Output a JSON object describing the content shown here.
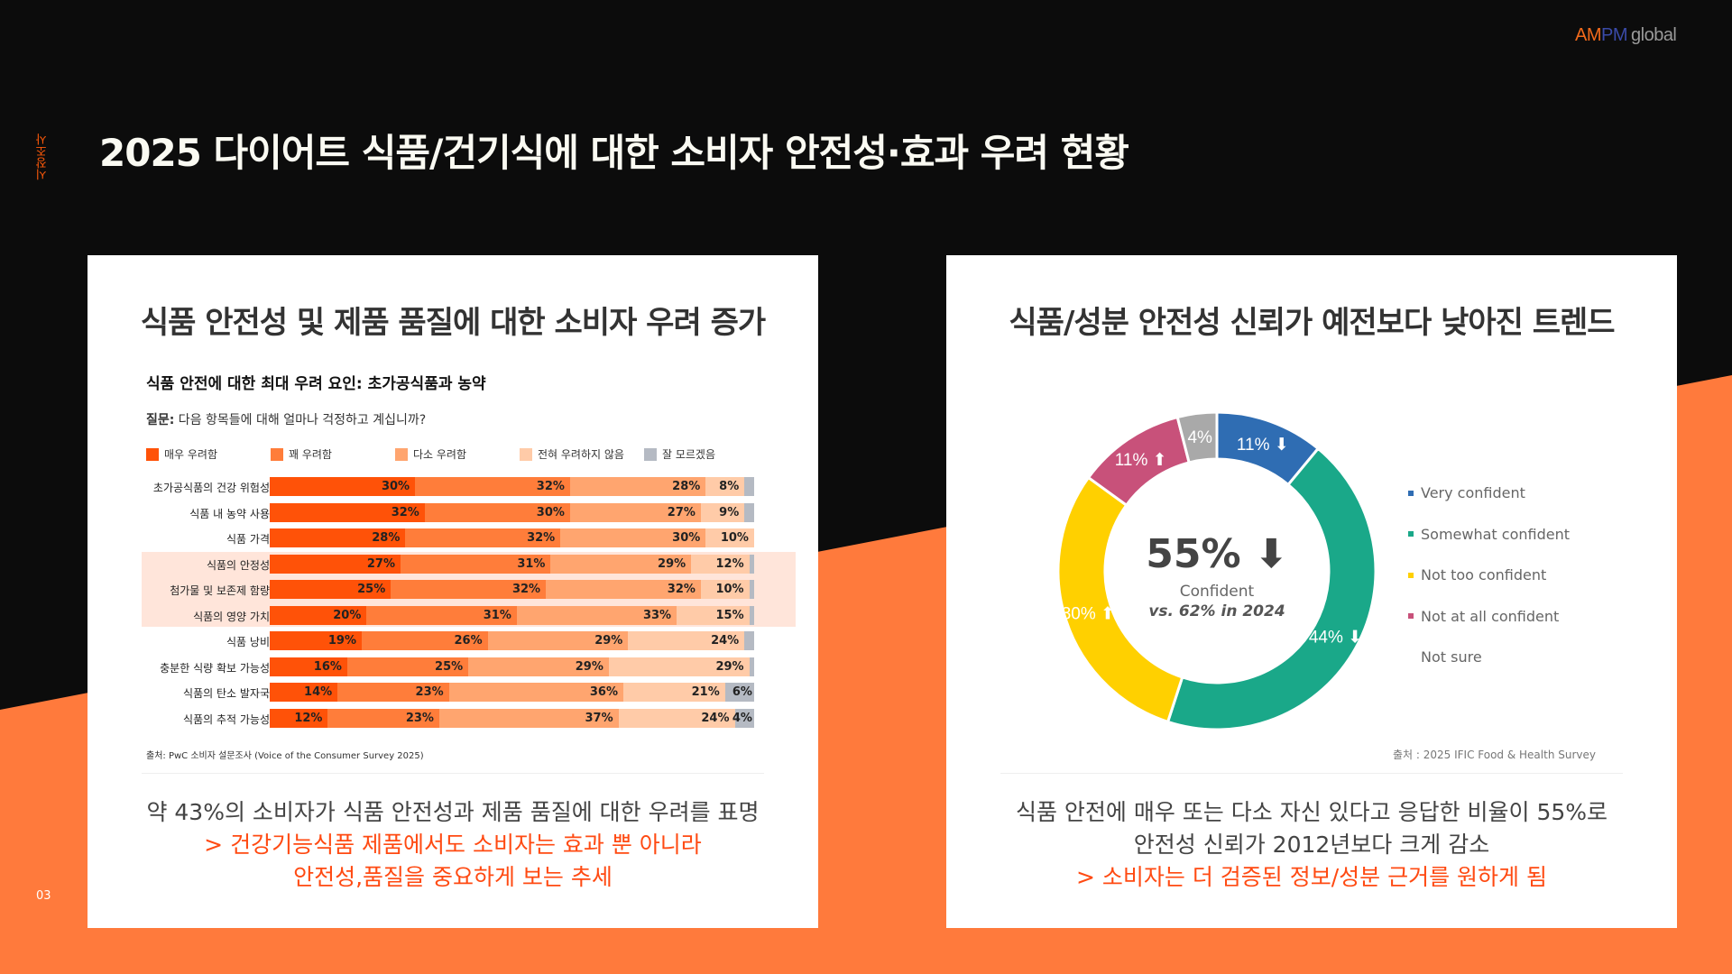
{
  "header": {
    "logo": {
      "am": "AM",
      "pm": "PM",
      "global": "global"
    },
    "section": "시장조사",
    "title": "2025 다이어트 식품/건기식에 대한 소비자 안전성·효과 우려 현황",
    "page": "03"
  },
  "left": {
    "title": "식품 안전성 및 제품 품질에 대한 소비자 우려 증가",
    "subtitle": "식품 안전에 대한 최대 우려 요인: 초가공식품과 농약",
    "question_label": "질문:",
    "question": " 다음 항목들에 대해 얼마나 걱정하고 계십니까?",
    "source": "출처: PwC 소비자 설문조사 (Voice of the Consumer Survey 2025)",
    "bottom": [
      "약 43%의 소비자가 식품 안전성과 제품 품질에 대한 우려를 표명",
      "> 건강기능식품 제품에서도 소비자는 효과 뿐 아니라",
      "안전성,품질을 중요하게 보는 추세"
    ]
  },
  "right": {
    "title": "식품/성분 안전성 신뢰가 예전보다 낮아진 트렌드",
    "center_value": "55%",
    "center_label": "Confident",
    "center_compare": "vs. 62% in 2024",
    "source": "출처 : 2025 IFIC Food & Health Survey",
    "bottom": [
      "식품 안전에 매우 또는 다소 자신 있다고 응답한 비율이 55%로",
      "안전성 신뢰가 2012년보다 크게 감소",
      "> 소비자는 더 검증된 정보/성분 근거를 원하게 됨"
    ]
  },
  "chart_data": [
    {
      "type": "bar",
      "stacked": true,
      "orientation": "horizontal",
      "legend": [
        "매우 우려함",
        "꽤 우려함",
        "다소 우려함",
        "전혀 우려하지 않음",
        "잘 모르겠음"
      ],
      "colors": [
        "#ff5208",
        "#ff7d3a",
        "#ffa56f",
        "#ffcba8",
        "#b5bac3"
      ],
      "categories": [
        "초가공식품의 건강 위험성",
        "식품 내 농약 사용",
        "식품 가격",
        "식품의 안정성",
        "첨가물 및 보존제 함량",
        "식품의 영양 가치",
        "식품 낭비",
        "충분한 식량 확보 가능성",
        "식품의 탄소 발자국",
        "식품의 추적 가능성"
      ],
      "highlighted": [
        3,
        4,
        5
      ],
      "series": [
        {
          "name": "매우 우려함",
          "values": [
            30,
            32,
            28,
            27,
            25,
            20,
            19,
            16,
            14,
            12
          ]
        },
        {
          "name": "꽤 우려함",
          "values": [
            32,
            30,
            32,
            31,
            32,
            31,
            26,
            25,
            23,
            23
          ]
        },
        {
          "name": "다소 우려함",
          "values": [
            28,
            27,
            30,
            29,
            32,
            33,
            29,
            29,
            36,
            37
          ]
        },
        {
          "name": "전혀 우려하지 않음",
          "values": [
            8,
            9,
            10,
            12,
            10,
            15,
            24,
            29,
            21,
            24
          ]
        },
        {
          "name": "잘 모르겠음",
          "values": [
            2,
            2,
            0,
            1,
            1,
            1,
            2,
            1,
            6,
            4
          ]
        }
      ],
      "unit": "%"
    },
    {
      "type": "pie",
      "donut": true,
      "labels": [
        "Very confident",
        "Somewhat confident",
        "Not too confident",
        "Not at all confident",
        "Not sure"
      ],
      "values": [
        11,
        44,
        30,
        11,
        4
      ],
      "trend": [
        "down",
        "down",
        "up",
        "up",
        ""
      ],
      "colors": [
        "#2f6db3",
        "#1aa889",
        "#ffd000",
        "#c8517a",
        "#a9a9a9"
      ],
      "unit": "%"
    }
  ]
}
